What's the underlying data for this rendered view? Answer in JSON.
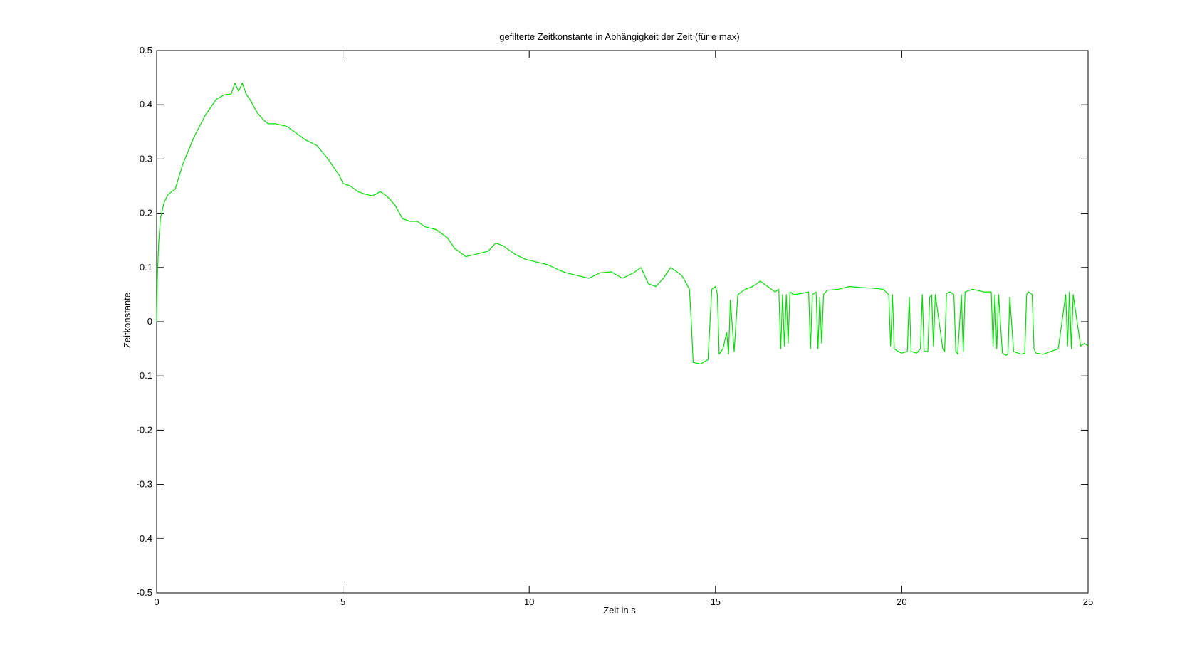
{
  "chart_data": {
    "type": "line",
    "title": "gefilterte Zeitkonstante in Abhängigkeit der Zeit (für e max)",
    "xlabel": "Zeit in s",
    "ylabel": "Zeitkonstante",
    "xlim": [
      0,
      25
    ],
    "ylim": [
      -0.5,
      0.5
    ],
    "xticks": [
      "0",
      "5",
      "10",
      "15",
      "20",
      "25"
    ],
    "yticks": [
      "0.5",
      "0.4",
      "0.3",
      "0.2",
      "0.1",
      "0",
      "-0.1",
      "-0.2",
      "-0.3",
      "-0.4",
      "-0.5"
    ],
    "grid": false,
    "legend": "none",
    "series": [
      {
        "color": "#00e000",
        "x": [
          0,
          0.02,
          0.05,
          0.1,
          0.2,
          0.3,
          0.5,
          0.7,
          1.0,
          1.3,
          1.6,
          1.8,
          2.0,
          2.1,
          2.2,
          2.3,
          2.4,
          2.5,
          2.7,
          2.9,
          3.0,
          3.2,
          3.5,
          3.7,
          3.9,
          4.0,
          4.3,
          4.6,
          4.9,
          5.0,
          5.2,
          5.4,
          5.6,
          5.8,
          6.0,
          6.2,
          6.4,
          6.6,
          6.8,
          7.0,
          7.2,
          7.5,
          7.8,
          8.0,
          8.3,
          8.6,
          8.9,
          9.1,
          9.3,
          9.6,
          9.9,
          10.2,
          10.5,
          10.8,
          11.0,
          11.3,
          11.6,
          11.9,
          12.2,
          12.5,
          12.8,
          13.0,
          13.2,
          13.4,
          13.6,
          13.8,
          13.9,
          14.1,
          14.3,
          14.35,
          14.4,
          14.6,
          14.8,
          14.9,
          15.0,
          15.05,
          15.1,
          15.2,
          15.3,
          15.35,
          15.4,
          15.5,
          15.6,
          15.8,
          16.0,
          16.2,
          16.4,
          16.6,
          16.7,
          16.75,
          16.8,
          16.85,
          16.9,
          16.95,
          17.0,
          17.1,
          17.3,
          17.5,
          17.55,
          17.6,
          17.7,
          17.75,
          17.8,
          17.85,
          17.9,
          18.0,
          18.3,
          18.6,
          18.9,
          19.2,
          19.5,
          19.65,
          19.7,
          19.75,
          19.8,
          19.9,
          20.0,
          20.15,
          20.2,
          20.25,
          20.4,
          20.5,
          20.55,
          20.6,
          20.7,
          20.75,
          20.8,
          20.85,
          20.9,
          21.1,
          21.15,
          21.2,
          21.3,
          21.4,
          21.45,
          21.5,
          21.6,
          21.65,
          21.7,
          21.9,
          22.2,
          22.4,
          22.45,
          22.5,
          22.55,
          22.6,
          22.7,
          22.8,
          22.85,
          22.9,
          23.0,
          23.2,
          23.3,
          23.35,
          23.4,
          23.5,
          23.55,
          23.6,
          23.8,
          24.0,
          24.2,
          24.4,
          24.45,
          24.5,
          24.55,
          24.6,
          24.8,
          24.9,
          24.95,
          25.0
        ],
        "values": [
          0,
          0.08,
          0.14,
          0.19,
          0.22,
          0.234,
          0.245,
          0.29,
          0.34,
          0.38,
          0.41,
          0.418,
          0.42,
          0.44,
          0.425,
          0.44,
          0.42,
          0.41,
          0.385,
          0.37,
          0.365,
          0.365,
          0.36,
          0.35,
          0.34,
          0.335,
          0.325,
          0.3,
          0.27,
          0.255,
          0.25,
          0.24,
          0.235,
          0.232,
          0.24,
          0.23,
          0.215,
          0.19,
          0.185,
          0.185,
          0.175,
          0.17,
          0.155,
          0.135,
          0.12,
          0.125,
          0.13,
          0.145,
          0.14,
          0.125,
          0.115,
          0.11,
          0.105,
          0.095,
          0.09,
          0.085,
          0.08,
          0.09,
          0.092,
          0.08,
          0.09,
          0.1,
          0.07,
          0.065,
          0.08,
          0.1,
          0.095,
          0.085,
          0.06,
          0.0,
          -0.075,
          -0.078,
          -0.07,
          0.06,
          0.065,
          0.05,
          -0.06,
          -0.05,
          -0.02,
          -0.06,
          0.04,
          -0.055,
          0.05,
          0.06,
          0.065,
          0.075,
          0.065,
          0.055,
          0.06,
          -0.05,
          0.05,
          -0.045,
          0.05,
          -0.04,
          0.055,
          0.05,
          0.052,
          0.055,
          -0.05,
          0.05,
          0.055,
          -0.05,
          0.045,
          -0.04,
          0.05,
          0.058,
          0.06,
          0.065,
          0.063,
          0.062,
          0.06,
          0.05,
          -0.045,
          0.05,
          -0.05,
          -0.055,
          -0.058,
          -0.055,
          0.045,
          -0.055,
          -0.058,
          -0.05,
          0.05,
          -0.055,
          -0.055,
          0.045,
          0.05,
          -0.045,
          0.05,
          -0.05,
          -0.055,
          0.052,
          0.055,
          0.05,
          -0.055,
          -0.06,
          0.05,
          -0.055,
          0.055,
          0.06,
          0.055,
          0.055,
          -0.045,
          0.05,
          -0.05,
          0.05,
          -0.058,
          -0.062,
          -0.06,
          0.045,
          -0.055,
          -0.06,
          -0.058,
          0.05,
          0.055,
          0.05,
          -0.05,
          -0.058,
          -0.06,
          -0.055,
          -0.05,
          0.05,
          -0.045,
          0.055,
          -0.05,
          0.05,
          -0.045,
          -0.04,
          -0.042,
          -0.045
        ]
      }
    ]
  }
}
